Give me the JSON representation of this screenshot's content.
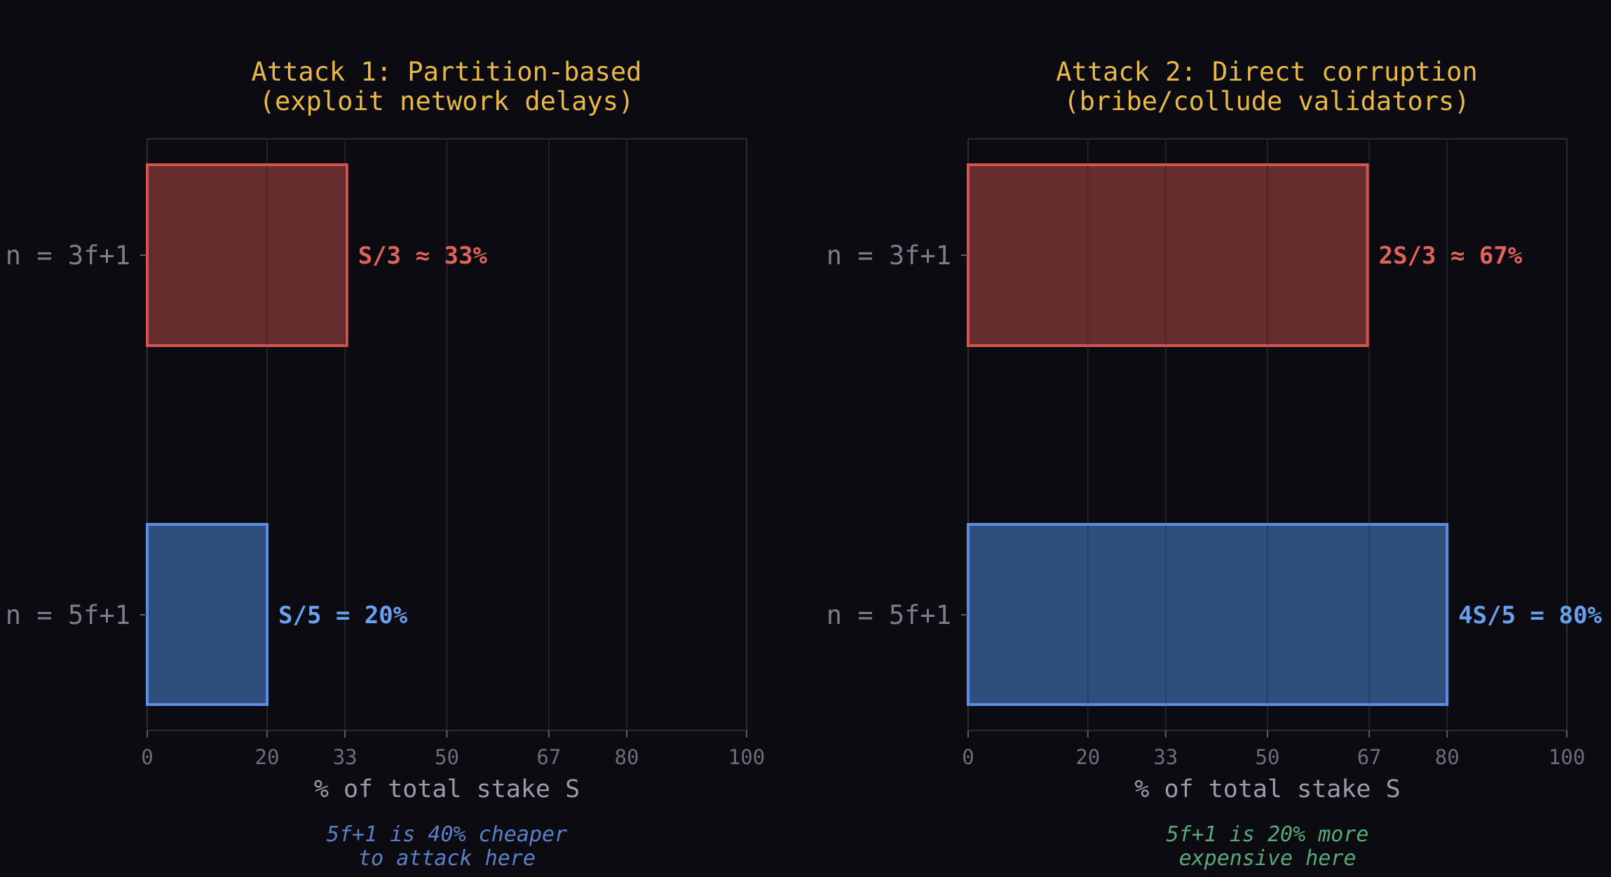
{
  "colors": {
    "background": "#0b0b11",
    "red_stroke": "#d9534f",
    "red_fill": "#6b2f31",
    "red_label": "#e0625c",
    "blue_stroke": "#5b8ee6",
    "blue_fill": "#325283",
    "blue_label": "#6aa0f0",
    "note_blue": "#5a80c8",
    "note_green": "#5aa878",
    "title": "#e8b84a"
  },
  "chart_data": [
    {
      "type": "bar",
      "orientation": "horizontal",
      "title": "Attack 1: Partition-based",
      "subtitle": "(exploit network delays)",
      "categories": [
        "n = 3f+1",
        "n = 5f+1"
      ],
      "values": [
        33.3,
        20
      ],
      "value_labels": [
        "S/3 ≈ 33%",
        "S/5 = 20%"
      ],
      "xlabel": "% of total stake S",
      "xlim": [
        0,
        100
      ],
      "xticks": [
        0,
        20,
        33,
        50,
        67,
        80,
        100
      ],
      "grid": "vertical",
      "note": [
        "5f+1 is 40% cheaper",
        "to attack here"
      ],
      "note_color": "blue"
    },
    {
      "type": "bar",
      "orientation": "horizontal",
      "title": "Attack 2: Direct corruption",
      "subtitle": "(bribe/collude validators)",
      "categories": [
        "n = 3f+1",
        "n = 5f+1"
      ],
      "values": [
        66.7,
        80
      ],
      "value_labels": [
        "2S/3 ≈ 67%",
        "4S/5 = 80%"
      ],
      "xlabel": "% of total stake S",
      "xlim": [
        0,
        100
      ],
      "xticks": [
        0,
        20,
        33,
        50,
        67,
        80,
        100
      ],
      "grid": "vertical",
      "note": [
        "5f+1 is 20% more",
        "expensive here"
      ],
      "note_color": "green"
    }
  ]
}
